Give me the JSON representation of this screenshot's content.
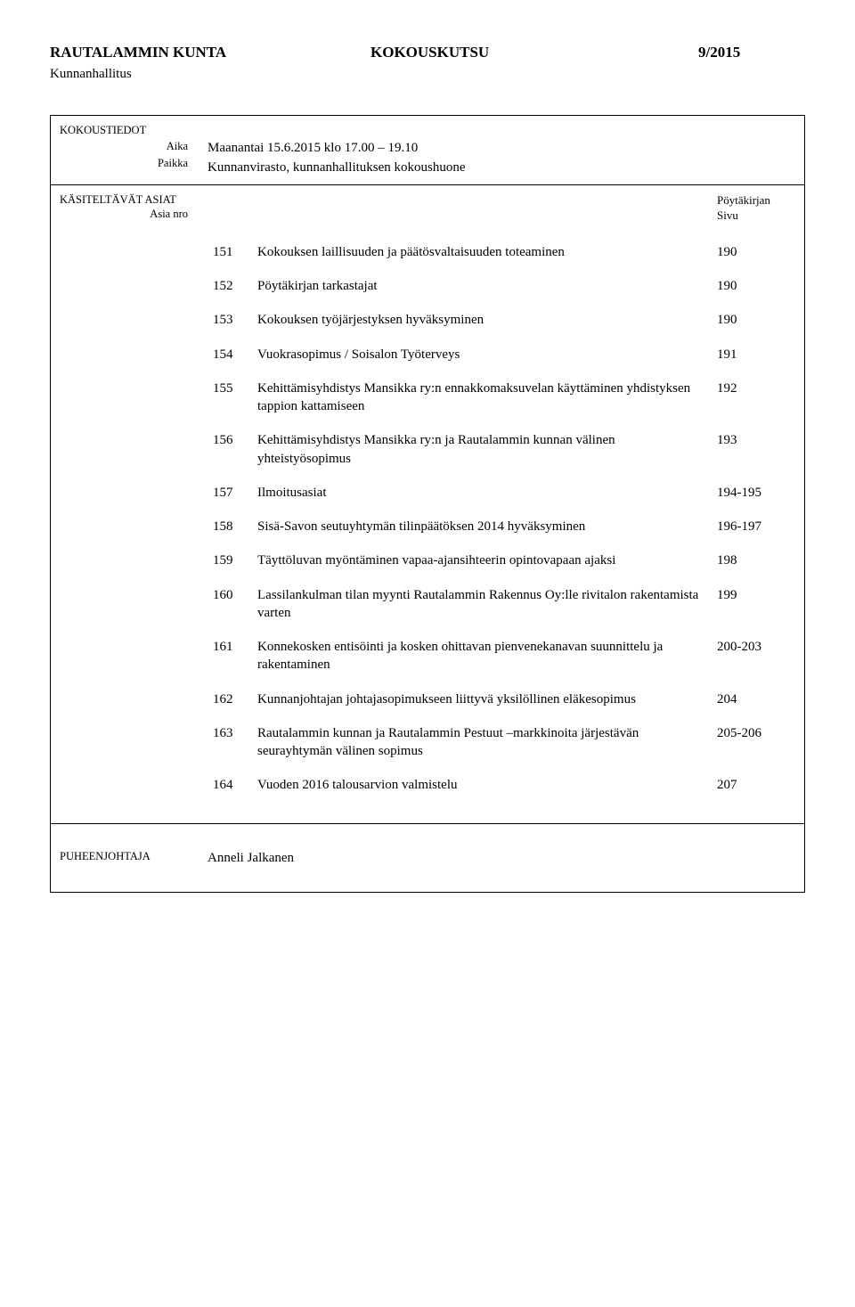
{
  "header": {
    "org": "RAUTALAMMIN KUNTA",
    "doc_type": "KOKOUSKUTSU",
    "doc_no": "9/2015",
    "board": "Kunnanhallitus"
  },
  "meeting": {
    "info_label": "KOKOUSTIEDOT",
    "time_label": "Aika",
    "place_label": "Paikka",
    "time": "Maanantai 15.6.2015 klo 17.00 – 19.10",
    "place": "Kunnanvirasto, kunnanhallituksen kokoushuone"
  },
  "items_header": {
    "left_label_1": "KÄSITELTÄVÄT ASIAT",
    "left_label_2": "Asia nro",
    "right_label_1": "Pöytäkirjan",
    "right_label_2": "Sivu"
  },
  "items": [
    {
      "num": "151",
      "desc": "Kokouksen laillisuuden ja päätösvaltaisuuden toteaminen",
      "page": "190"
    },
    {
      "num": "152",
      "desc": "Pöytäkirjan tarkastajat",
      "page": "190"
    },
    {
      "num": "153",
      "desc": "Kokouksen työjärjestyksen hyväksyminen",
      "page": "190"
    },
    {
      "num": "154",
      "desc": "Vuokrasopimus / Soisalon Työterveys",
      "page": "191"
    },
    {
      "num": "155",
      "desc": "Kehittämisyhdistys Mansikka ry:n ennakkomaksuvelan käyttäminen yhdistyksen tappion kattamiseen",
      "page": "192"
    },
    {
      "num": "156",
      "desc": "Kehittämisyhdistys Mansikka ry:n ja Rautalammin kunnan välinen yhteistyösopimus",
      "page": "193"
    },
    {
      "num": "157",
      "desc": "Ilmoitusasiat",
      "page": "194-195"
    },
    {
      "num": "158",
      "desc": "Sisä-Savon seutuyhtymän tilinpäätöksen 2014 hyväksyminen",
      "page": "196-197"
    },
    {
      "num": "159",
      "desc": "Täyttöluvan myöntäminen vapaa-ajansihteerin opintovapaan ajaksi",
      "page": "198"
    },
    {
      "num": "160",
      "desc": "Lassilankulman tilan myynti Rautalammin Rakennus Oy:lle rivitalon rakentamista varten",
      "page": "199"
    },
    {
      "num": "161",
      "desc": "Konnekosken entisöinti ja kosken ohittavan pienvenekanavan suunnittelu ja rakentaminen",
      "page": "200-203"
    },
    {
      "num": "162",
      "desc": "Kunnanjohtajan johtajasopimukseen liittyvä yksilöllinen eläkesopimus",
      "page": "204"
    },
    {
      "num": "163",
      "desc": "Rautalammin kunnan ja Rautalammin Pestuut –markkinoita järjestävän seurayhtymän välinen sopimus",
      "page": "205-206"
    },
    {
      "num": "164",
      "desc": "Vuoden 2016 talousarvion valmistelu",
      "page": "207"
    }
  ],
  "chair": {
    "label": "PUHEENJOHTAJA",
    "name": "Anneli Jalkanen"
  }
}
